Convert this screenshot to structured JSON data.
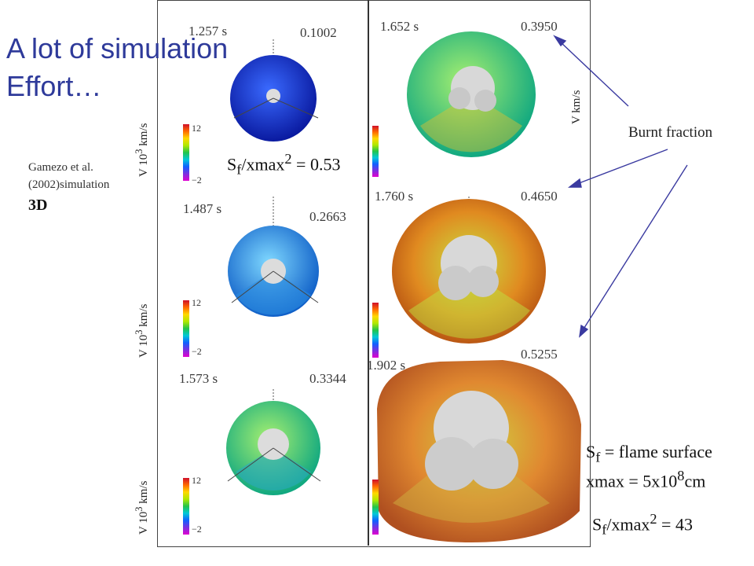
{
  "title": {
    "line1": "A lot of simulation",
    "line2": "Effort…"
  },
  "citation": {
    "line1": "Gamezo et al.",
    "line2": "(2002)simulation",
    "dim": "3D"
  },
  "panels": [
    {
      "time": "1.257 s",
      "fraction": "0.1002"
    },
    {
      "time": "1.652 s",
      "fraction": "0.3950"
    },
    {
      "time": "1.487 s",
      "fraction": "0.2663"
    },
    {
      "time": "1.760 s",
      "fraction": "0.4650"
    },
    {
      "time": "1.573 s",
      "fraction": "0.3344"
    },
    {
      "time": "1.902 s",
      "fraction": "0.5255"
    }
  ],
  "axis_labels": {
    "v1": "V 10",
    "v1_exp": "3",
    "v1_unit": " km/s",
    "v_right": "V km/s"
  },
  "colorbar": {
    "top": "12",
    "bottom": "−2"
  },
  "ratio_small": {
    "prefix": "S",
    "sub": "f",
    "mid": "/xmax",
    "sup": "2",
    "suffix": " = 0.53"
  },
  "burnt_fraction": "Burnt fraction",
  "legend": {
    "sf_prefix": "S",
    "sf_sub": "f",
    "sf_text": " = flame surface",
    "xmax_text": "xmax = 5x10",
    "xmax_sup": "8",
    "xmax_unit": "cm",
    "ratio_prefix": "S",
    "ratio_sub": "f",
    "ratio_mid": "/xmax",
    "ratio_sup": "2",
    "ratio_suffix": " = 43"
  },
  "colors": {
    "title": "#2e3a9a",
    "arrow": "#3a3aa0"
  }
}
